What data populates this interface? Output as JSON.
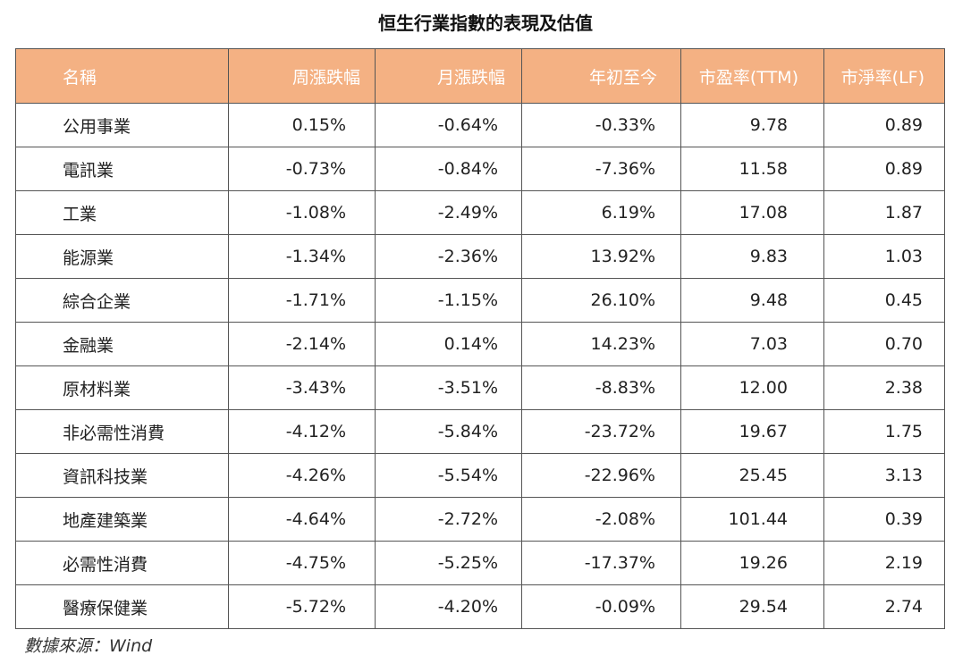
{
  "title": "恒生行業指數的表現及估值",
  "table": {
    "headers": [
      "名稱",
      "周漲跌幅",
      "月漲跌幅",
      "年初至今",
      "市盈率(TTM)",
      "市淨率(LF)"
    ],
    "rows": [
      [
        "公用事業",
        "0.15%",
        "-0.64%",
        "-0.33%",
        "9.78",
        "0.89"
      ],
      [
        "電訊業",
        "-0.73%",
        "-0.84%",
        "-7.36%",
        "11.58",
        "0.89"
      ],
      [
        "工業",
        "-1.08%",
        "-2.49%",
        "6.19%",
        "17.08",
        "1.87"
      ],
      [
        "能源業",
        "-1.34%",
        "-2.36%",
        "13.92%",
        "9.83",
        "1.03"
      ],
      [
        "綜合企業",
        "-1.71%",
        "-1.15%",
        "26.10%",
        "9.48",
        "0.45"
      ],
      [
        "金融業",
        "-2.14%",
        "0.14%",
        "14.23%",
        "7.03",
        "0.70"
      ],
      [
        "原材料業",
        "-3.43%",
        "-3.51%",
        "-8.83%",
        "12.00",
        "2.38"
      ],
      [
        "非必需性消費",
        "-4.12%",
        "-5.84%",
        "-23.72%",
        "19.67",
        "1.75"
      ],
      [
        "資訊科技業",
        "-4.26%",
        "-5.54%",
        "-22.96%",
        "25.45",
        "3.13"
      ],
      [
        "地產建築業",
        "-4.64%",
        "-2.72%",
        "-2.08%",
        "101.44",
        "0.39"
      ],
      [
        "必需性消費",
        "-4.75%",
        "-5.25%",
        "-17.37%",
        "19.26",
        "2.19"
      ],
      [
        "醫療保健業",
        "-5.72%",
        "-4.20%",
        "-0.09%",
        "29.54",
        "2.74"
      ]
    ]
  },
  "source": "數據來源：Wind",
  "colors": {
    "header_bg": "#f4b183",
    "header_text": "#ffffff",
    "border": "#555555"
  }
}
